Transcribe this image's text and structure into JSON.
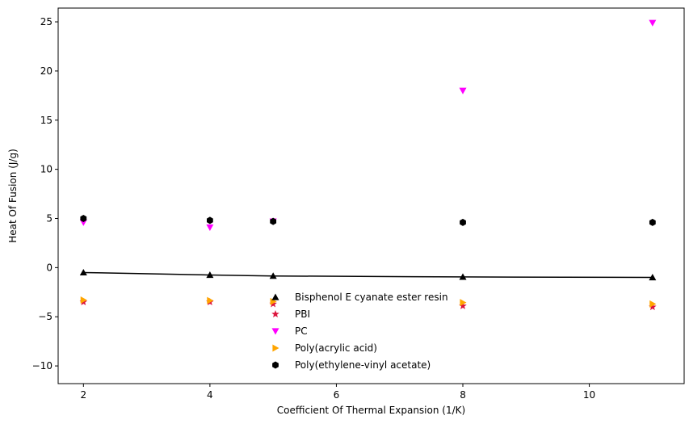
{
  "chart_data": {
    "type": "scatter",
    "xlabel": "Coefficient Of Thermal Expansion (1/K)",
    "ylabel": "Heat Of Fusion (J/g)",
    "xlim": [
      1.6,
      11.5
    ],
    "ylim": [
      -11.8,
      26.4
    ],
    "xticks": [
      2,
      4,
      6,
      8,
      10
    ],
    "yticks": [
      -10,
      -5,
      0,
      5,
      10,
      15,
      20,
      25
    ],
    "grid": false,
    "legend_position": "bottom-center",
    "series": [
      {
        "name": "Bisphenol E cyanate ester resin",
        "marker": "triangle-up",
        "color": "#000000",
        "line": true,
        "x": [
          2,
          4,
          5,
          8,
          11
        ],
        "y": [
          -0.5,
          -0.75,
          -0.85,
          -0.95,
          -1.0
        ]
      },
      {
        "name": "PBI",
        "marker": "star",
        "color": "#dc143c",
        "line": false,
        "x": [
          2,
          4,
          5,
          8,
          11
        ],
        "y": [
          -3.5,
          -3.5,
          -3.7,
          -3.9,
          -4.0
        ]
      },
      {
        "name": "PC",
        "marker": "triangle-down",
        "color": "#ff00ff",
        "line": false,
        "x": [
          2,
          4,
          5,
          8,
          11
        ],
        "y": [
          4.6,
          4.1,
          4.7,
          18.0,
          24.9
        ]
      },
      {
        "name": "Poly(acrylic acid)",
        "marker": "triangle-right",
        "color": "#ffa500",
        "line": false,
        "x": [
          2,
          4,
          5,
          8,
          11
        ],
        "y": [
          -3.3,
          -3.35,
          -3.45,
          -3.55,
          -3.7
        ]
      },
      {
        "name": "Poly(ethylene-vinyl acetate)",
        "marker": "hexagon",
        "color": "#000000",
        "line": false,
        "x": [
          2,
          4,
          5,
          8,
          11
        ],
        "y": [
          5.0,
          4.8,
          4.7,
          4.6,
          4.6
        ]
      }
    ]
  }
}
